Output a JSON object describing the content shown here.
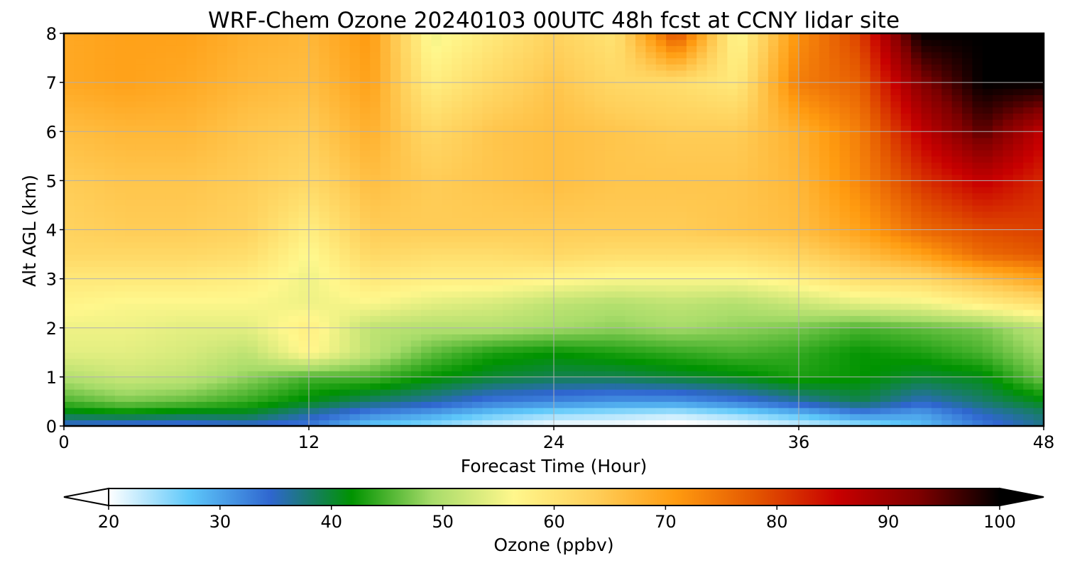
{
  "chart_data": {
    "type": "heatmap",
    "title": "WRF-Chem Ozone  20240103 00UTC 48h fcst at CCNY lidar site",
    "xlabel": "Forecast Time (Hour)",
    "ylabel": "Alt AGL (km)",
    "xlim": [
      0,
      48
    ],
    "ylim": [
      0,
      8
    ],
    "x_ticks": [
      "0",
      "12",
      "24",
      "36",
      "48"
    ],
    "y_ticks": [
      "0",
      "1",
      "2",
      "3",
      "4",
      "5",
      "6",
      "7",
      "8"
    ],
    "grid": true,
    "x": [
      0,
      3,
      6,
      9,
      12,
      15,
      18,
      21,
      24,
      27,
      30,
      33,
      36,
      39,
      42,
      45,
      48
    ],
    "y": [
      0,
      0.25,
      0.5,
      1,
      1.5,
      2,
      2.5,
      3,
      3.5,
      4,
      5,
      6,
      7,
      8
    ],
    "z": [
      [
        34,
        33,
        33,
        34,
        33,
        27,
        25,
        22,
        20,
        20,
        19,
        20,
        22,
        24,
        28,
        33,
        37
      ],
      [
        40,
        41,
        40,
        40,
        36,
        32,
        30,
        27,
        25,
        24,
        23,
        25,
        28,
        32,
        30,
        35,
        38
      ],
      [
        45,
        47,
        46,
        44,
        41,
        38,
        36,
        33,
        32,
        31,
        31,
        33,
        36,
        39,
        35,
        38,
        41
      ],
      [
        50,
        52,
        51,
        48,
        45,
        45,
        42,
        40,
        39,
        39,
        40,
        41,
        43,
        42,
        40,
        41,
        47
      ],
      [
        54,
        54,
        53,
        51,
        57,
        51,
        46,
        43,
        42,
        43,
        44,
        45,
        44,
        42,
        43,
        45,
        49
      ],
      [
        55,
        55,
        54,
        54,
        58,
        51,
        50,
        50,
        49,
        48,
        49,
        48,
        47,
        45,
        46,
        47,
        51
      ],
      [
        57,
        56,
        56,
        56,
        55,
        56,
        54,
        53,
        51,
        50,
        51,
        50,
        52,
        54,
        55,
        58,
        61
      ],
      [
        59,
        59,
        59,
        58,
        55,
        59,
        58,
        58,
        57,
        56,
        56,
        56,
        58,
        61,
        62,
        66,
        70
      ],
      [
        62,
        62,
        62,
        61,
        56,
        62,
        61,
        61,
        62,
        61,
        61,
        61,
        63,
        66,
        70,
        76,
        78
      ],
      [
        63,
        64,
        64,
        63,
        58,
        64,
        64,
        64,
        64,
        64,
        64,
        65,
        66,
        70,
        76,
        79,
        80
      ],
      [
        64,
        65,
        65,
        64,
        62,
        66,
        64,
        65,
        66,
        65,
        65,
        65,
        67,
        73,
        81,
        86,
        82
      ],
      [
        66,
        67,
        67,
        65,
        64,
        68,
        62,
        65,
        66,
        65,
        64,
        64,
        68,
        74,
        86,
        95,
        86
      ],
      [
        69,
        70,
        69,
        67,
        66,
        70,
        58,
        62,
        65,
        62,
        61,
        59,
        74,
        77,
        92,
        100,
        100
      ],
      [
        69,
        70,
        70,
        68,
        67,
        71,
        55,
        59,
        63,
        60,
        79,
        56,
        72,
        80,
        100,
        100,
        100
      ]
    ],
    "colorbar": {
      "label": "Ozone  (ppbv)",
      "ticks": [
        "20",
        "30",
        "40",
        "50",
        "60",
        "70",
        "80",
        "90",
        "100"
      ],
      "range": [
        20,
        100
      ],
      "extend": "both",
      "colors": [
        "#ffffff",
        "#5ec8fa",
        "#2f66cf",
        "#009300",
        "#a8dc6a",
        "#fff78c",
        "#ffcf5a",
        "#ff9b10",
        "#e35500",
        "#c80000",
        "#7f0000",
        "#000000"
      ]
    }
  }
}
